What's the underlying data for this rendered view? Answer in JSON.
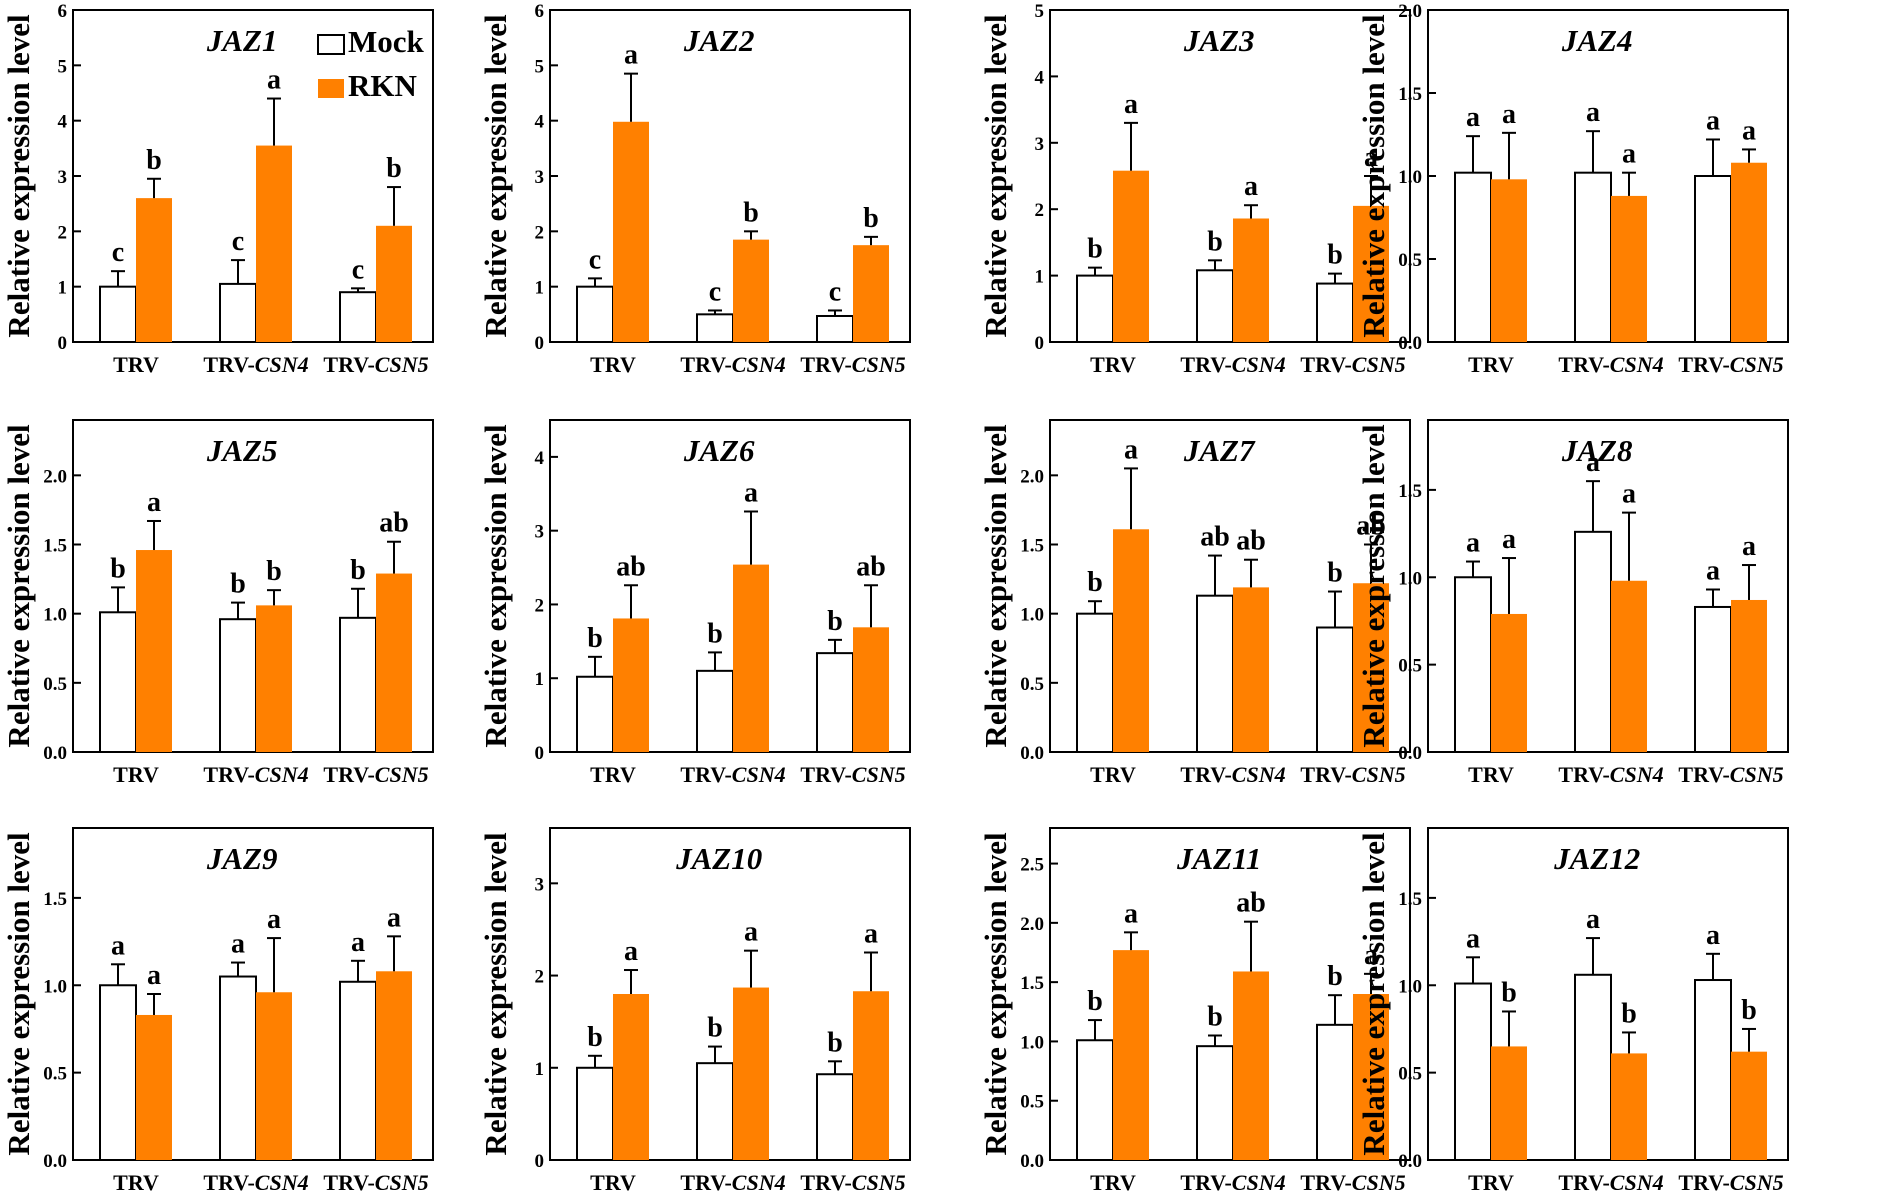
{
  "colors": {
    "mock": "#ffffff",
    "rkn": "#ff8000",
    "stroke": "#000000"
  },
  "legend": {
    "mock": "Mock",
    "rkn": "RKN"
  },
  "ylabel": "Relative expression level",
  "categories": [
    {
      "prefix": "TRV",
      "italic": ""
    },
    {
      "prefix": "TRV-",
      "italic": "CSN4"
    },
    {
      "prefix": "TRV-",
      "italic": "CSN5"
    }
  ],
  "chart_data": [
    {
      "type": "bar",
      "title": "JAZ1",
      "ylim": [
        0,
        6
      ],
      "yticks": [
        0,
        1,
        2,
        3,
        4,
        5,
        6
      ],
      "tick_decimals": 0,
      "series": [
        {
          "name": "Mock",
          "values": [
            1.0,
            1.05,
            0.9
          ],
          "errors": [
            0.28,
            0.43,
            0.07
          ],
          "labels": [
            "c",
            "c",
            "c"
          ]
        },
        {
          "name": "RKN",
          "values": [
            2.6,
            3.55,
            2.1
          ],
          "errors": [
            0.35,
            0.85,
            0.7
          ],
          "labels": [
            "b",
            "a",
            "b"
          ]
        }
      ]
    },
    {
      "type": "bar",
      "title": "JAZ2",
      "ylim": [
        0,
        6
      ],
      "yticks": [
        0,
        1,
        2,
        3,
        4,
        5,
        6
      ],
      "tick_decimals": 0,
      "series": [
        {
          "name": "Mock",
          "values": [
            1.0,
            0.5,
            0.47
          ],
          "errors": [
            0.15,
            0.07,
            0.1
          ],
          "labels": [
            "c",
            "c",
            "c"
          ]
        },
        {
          "name": "RKN",
          "values": [
            3.98,
            1.85,
            1.75
          ],
          "errors": [
            0.87,
            0.15,
            0.15
          ],
          "labels": [
            "a",
            "b",
            "b"
          ]
        }
      ]
    },
    {
      "type": "bar",
      "title": "JAZ3",
      "ylim": [
        0,
        5
      ],
      "yticks": [
        0,
        1,
        2,
        3,
        4,
        5
      ],
      "tick_decimals": 0,
      "series": [
        {
          "name": "Mock",
          "values": [
            1.0,
            1.08,
            0.88
          ],
          "errors": [
            0.12,
            0.15,
            0.15
          ],
          "labels": [
            "b",
            "b",
            "b"
          ]
        },
        {
          "name": "RKN",
          "values": [
            2.58,
            1.86,
            2.05
          ],
          "errors": [
            0.72,
            0.2,
            0.45
          ],
          "labels": [
            "a",
            "a",
            "a"
          ]
        }
      ]
    },
    {
      "type": "bar",
      "title": "JAZ4",
      "ylim": [
        0,
        2
      ],
      "yticks": [
        0,
        0.5,
        1,
        1.5,
        2
      ],
      "tick_decimals": 1,
      "series": [
        {
          "name": "Mock",
          "values": [
            1.02,
            1.02,
            1.0
          ],
          "errors": [
            0.22,
            0.25,
            0.22
          ],
          "labels": [
            "a",
            "a",
            "a"
          ]
        },
        {
          "name": "RKN",
          "values": [
            0.98,
            0.88,
            1.08
          ],
          "errors": [
            0.28,
            0.14,
            0.08
          ],
          "labels": [
            "a",
            "a",
            "a"
          ]
        }
      ]
    },
    {
      "type": "bar",
      "title": "JAZ5",
      "ylim": [
        0,
        2.4
      ],
      "yticks": [
        0,
        0.5,
        1,
        1.5,
        2
      ],
      "tick_decimals": 1,
      "series": [
        {
          "name": "Mock",
          "values": [
            1.01,
            0.96,
            0.97
          ],
          "errors": [
            0.18,
            0.12,
            0.21
          ],
          "labels": [
            "b",
            "b",
            "b"
          ]
        },
        {
          "name": "RKN",
          "values": [
            1.46,
            1.06,
            1.29
          ],
          "errors": [
            0.21,
            0.11,
            0.23
          ],
          "labels": [
            "a",
            "b",
            "ab"
          ]
        }
      ]
    },
    {
      "type": "bar",
      "title": "JAZ6",
      "ylim": [
        0,
        4.5
      ],
      "yticks": [
        0,
        1,
        2,
        3,
        4
      ],
      "tick_decimals": 0,
      "series": [
        {
          "name": "Mock",
          "values": [
            1.02,
            1.1,
            1.34
          ],
          "errors": [
            0.27,
            0.25,
            0.18
          ],
          "labels": [
            "b",
            "b",
            "b"
          ]
        },
        {
          "name": "RKN",
          "values": [
            1.81,
            2.54,
            1.69
          ],
          "errors": [
            0.45,
            0.72,
            0.57
          ],
          "labels": [
            "ab",
            "a",
            "ab"
          ]
        }
      ]
    },
    {
      "type": "bar",
      "title": "JAZ7",
      "ylim": [
        0,
        2.4
      ],
      "yticks": [
        0,
        0.5,
        1,
        1.5,
        2
      ],
      "tick_decimals": 1,
      "series": [
        {
          "name": "Mock",
          "values": [
            1.0,
            1.13,
            0.9
          ],
          "errors": [
            0.09,
            0.29,
            0.26
          ],
          "labels": [
            "b",
            "ab",
            "b"
          ]
        },
        {
          "name": "RKN",
          "values": [
            1.61,
            1.19,
            1.22
          ],
          "errors": [
            0.44,
            0.2,
            0.28
          ],
          "labels": [
            "a",
            "ab",
            "ab"
          ]
        }
      ]
    },
    {
      "type": "bar",
      "title": "JAZ8",
      "ylim": [
        0,
        1.9
      ],
      "yticks": [
        0,
        0.5,
        1,
        1.5
      ],
      "tick_decimals": 1,
      "series": [
        {
          "name": "Mock",
          "values": [
            1.0,
            1.26,
            0.83
          ],
          "errors": [
            0.09,
            0.29,
            0.1
          ],
          "labels": [
            "a",
            "a",
            "a"
          ]
        },
        {
          "name": "RKN",
          "values": [
            0.79,
            0.98,
            0.87
          ],
          "errors": [
            0.32,
            0.39,
            0.2
          ],
          "labels": [
            "a",
            "a",
            "a"
          ]
        }
      ]
    },
    {
      "type": "bar",
      "title": "JAZ9",
      "ylim": [
        0,
        1.9
      ],
      "yticks": [
        0,
        0.5,
        1,
        1.5
      ],
      "tick_decimals": 1,
      "series": [
        {
          "name": "Mock",
          "values": [
            1.0,
            1.05,
            1.02
          ],
          "errors": [
            0.12,
            0.08,
            0.12
          ],
          "labels": [
            "a",
            "a",
            "a"
          ]
        },
        {
          "name": "RKN",
          "values": [
            0.83,
            0.96,
            1.08
          ],
          "errors": [
            0.12,
            0.31,
            0.2
          ],
          "labels": [
            "a",
            "a",
            "a"
          ]
        }
      ]
    },
    {
      "type": "bar",
      "title": "JAZ10",
      "ylim": [
        0,
        3.6
      ],
      "yticks": [
        0,
        1,
        2,
        3
      ],
      "tick_decimals": 0,
      "series": [
        {
          "name": "Mock",
          "values": [
            1.0,
            1.05,
            0.93
          ],
          "errors": [
            0.13,
            0.18,
            0.14
          ],
          "labels": [
            "b",
            "b",
            "b"
          ]
        },
        {
          "name": "RKN",
          "values": [
            1.8,
            1.87,
            1.83
          ],
          "errors": [
            0.26,
            0.4,
            0.42
          ],
          "labels": [
            "a",
            "a",
            "a"
          ]
        }
      ]
    },
    {
      "type": "bar",
      "title": "JAZ11",
      "ylim": [
        0,
        2.8
      ],
      "yticks": [
        0,
        0.5,
        1,
        1.5,
        2,
        2.5
      ],
      "tick_decimals": 1,
      "series": [
        {
          "name": "Mock",
          "values": [
            1.01,
            0.96,
            1.14
          ],
          "errors": [
            0.17,
            0.09,
            0.25
          ],
          "labels": [
            "b",
            "b",
            "b"
          ]
        },
        {
          "name": "RKN",
          "values": [
            1.77,
            1.59,
            1.4
          ],
          "errors": [
            0.15,
            0.42,
            0.17
          ],
          "labels": [
            "a",
            "ab",
            "a"
          ]
        }
      ]
    },
    {
      "type": "bar",
      "title": "JAZ12",
      "ylim": [
        0,
        1.9
      ],
      "yticks": [
        0,
        0.5,
        1,
        1.5
      ],
      "tick_decimals": 1,
      "series": [
        {
          "name": "Mock",
          "values": [
            1.01,
            1.06,
            1.03
          ],
          "errors": [
            0.15,
            0.21,
            0.15
          ],
          "labels": [
            "a",
            "a",
            "a"
          ]
        },
        {
          "name": "RKN",
          "values": [
            0.65,
            0.61,
            0.62
          ],
          "errors": [
            0.2,
            0.12,
            0.13
          ],
          "labels": [
            "b",
            "b",
            "b"
          ]
        }
      ]
    }
  ]
}
